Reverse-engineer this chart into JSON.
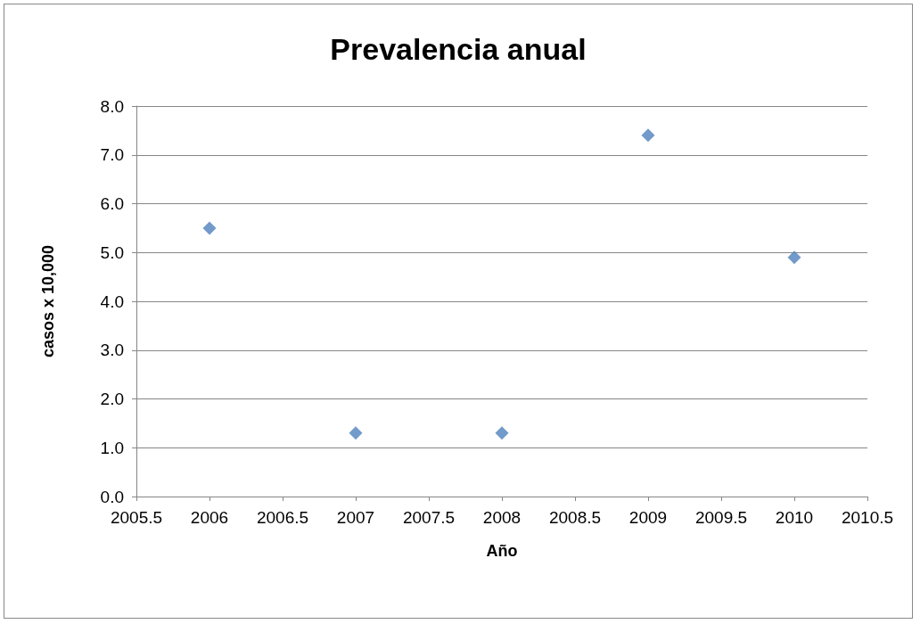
{
  "chart_data": {
    "type": "scatter",
    "title": "Prevalencia anual",
    "xlabel": "Año",
    "ylabel": "casos x 10,000",
    "x": [
      2006,
      2007,
      2008,
      2009,
      2010
    ],
    "series": [
      {
        "color": "#4f81bd",
        "values": [
          5.5,
          1.3,
          1.3,
          7.4,
          4.9
        ]
      }
    ],
    "xlim": [
      2005.5,
      2010.5
    ],
    "xticks": [
      2005.5,
      2006,
      2006.5,
      2007,
      2007.5,
      2008,
      2008.5,
      2009,
      2009.5,
      2010,
      2010.5
    ],
    "ylim": [
      0,
      8
    ],
    "yticks": [
      {
        "value": 0,
        "label": "0.0"
      },
      {
        "value": 1,
        "label": "1.0"
      },
      {
        "value": 2,
        "label": "2.0"
      },
      {
        "value": 3,
        "label": "3.0"
      },
      {
        "value": 4,
        "label": "4.0"
      },
      {
        "value": 5,
        "label": "5.0"
      },
      {
        "value": 6,
        "label": "6.0"
      },
      {
        "value": 7,
        "label": "7.0"
      },
      {
        "value": 8,
        "label": "8.0"
      }
    ],
    "grid": "y",
    "marker": "diamond"
  }
}
